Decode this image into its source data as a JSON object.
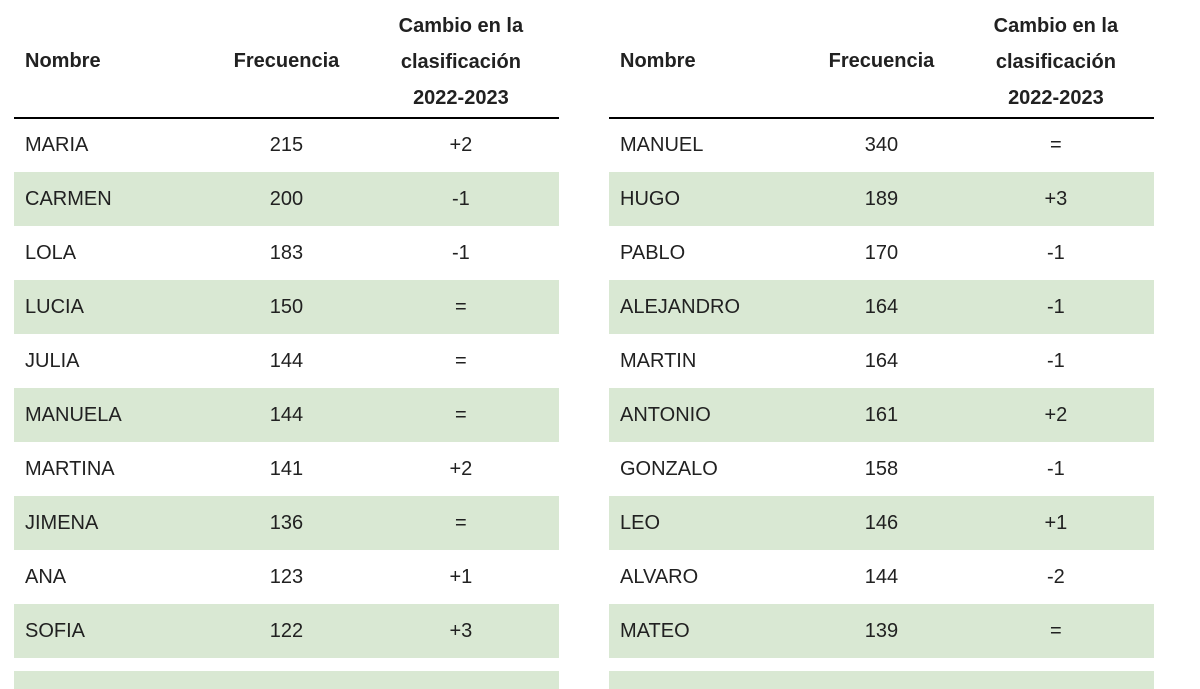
{
  "colors": {
    "row_highlight": "#d9e8d3",
    "text": "#212121",
    "header_rule": "#000000"
  },
  "header": {
    "col1": "Nombre",
    "col2": "Frecuencia",
    "col3_lines": [
      "Cambio en la",
      "clasificación",
      "2022-2023"
    ]
  },
  "chart_data": [
    {
      "type": "table",
      "title": "",
      "columns": [
        "Nombre",
        "Frecuencia",
        "Cambio en la clasificación 2022-2023"
      ],
      "rows": [
        [
          "MARIA",
          215,
          "+2"
        ],
        [
          "CARMEN",
          200,
          "-1"
        ],
        [
          "LOLA",
          183,
          "-1"
        ],
        [
          "LUCIA",
          150,
          "="
        ],
        [
          "JULIA",
          144,
          "="
        ],
        [
          "MANUELA",
          144,
          "="
        ],
        [
          "MARTINA",
          141,
          "+2"
        ],
        [
          "JIMENA",
          136,
          "="
        ],
        [
          "ANA",
          123,
          "+1"
        ],
        [
          "SOFIA",
          122,
          "+3"
        ]
      ]
    },
    {
      "type": "table",
      "title": "",
      "columns": [
        "Nombre",
        "Frecuencia",
        "Cambio en la clasificación 2022-2023"
      ],
      "rows": [
        [
          "MANUEL",
          340,
          "="
        ],
        [
          "HUGO",
          189,
          "+3"
        ],
        [
          "PABLO",
          170,
          "-1"
        ],
        [
          "ALEJANDRO",
          164,
          "-1"
        ],
        [
          "MARTIN",
          164,
          "-1"
        ],
        [
          "ANTONIO",
          161,
          "+2"
        ],
        [
          "GONZALO",
          158,
          "-1"
        ],
        [
          "LEO",
          146,
          "+1"
        ],
        [
          "ALVARO",
          144,
          "-2"
        ],
        [
          "MATEO",
          139,
          "="
        ]
      ]
    }
  ]
}
